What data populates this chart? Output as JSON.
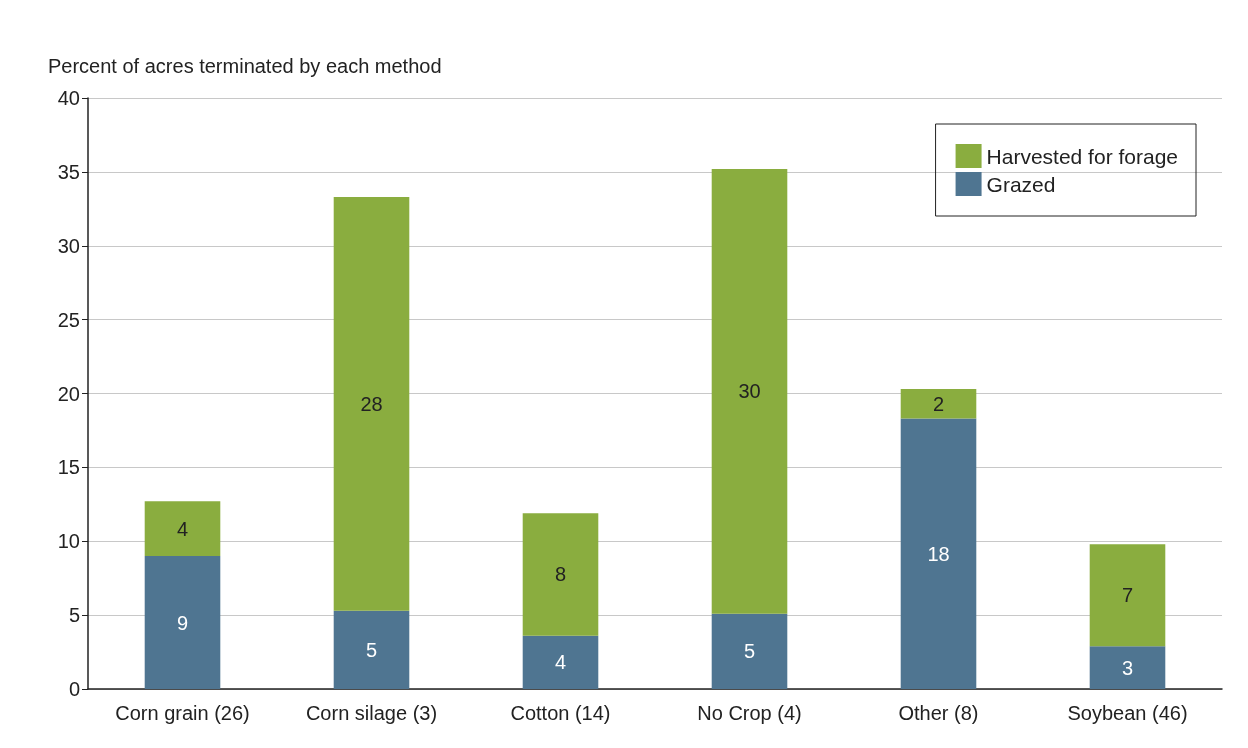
{
  "chart_data": {
    "type": "bar",
    "stacked": true,
    "ylabel": "Percent of acres terminated by each method",
    "categories": [
      "Corn grain (26)",
      "Corn silage (3)",
      "Cotton (14)",
      "No Crop (4)",
      "Other (8)",
      "Soybean (46)"
    ],
    "series": [
      {
        "name": "Grazed",
        "color": "#4f7591",
        "values": [
          9.0,
          5.3,
          3.6,
          5.1,
          18.3,
          2.9
        ],
        "value_labels": [
          "9",
          "5",
          "4",
          "5",
          "18",
          "3"
        ]
      },
      {
        "name": "Harvested for forage",
        "color": "#8aad3f",
        "values": [
          3.7,
          28.0,
          8.3,
          30.1,
          2.0,
          6.9
        ],
        "value_labels": [
          "4",
          "28",
          "8",
          "30",
          "2",
          "7"
        ]
      }
    ],
    "ylim": [
      0,
      40
    ],
    "yticks": [
      0,
      5,
      10,
      15,
      20,
      25,
      30,
      35,
      40
    ],
    "grid": "y",
    "legend": "top right"
  }
}
